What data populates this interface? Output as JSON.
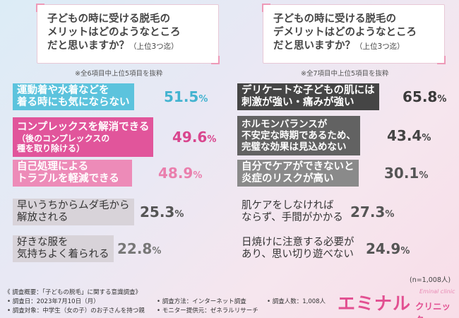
{
  "chart_data": [
    {
      "type": "bar",
      "title": "子どもの時に受ける脱毛のメリットはどのようなところだと思いますか？",
      "title_lines": [
        "子どもの時に受ける脱毛の",
        "メリットはどのようなところ",
        "だと思いますか？"
      ],
      "title_note": "（上位3つ迄）",
      "subnote": "※全6項目中上位5項目を抜粋",
      "categories": [
        "運動着や水着などを着る時にも気にならない",
        "コンプレックスを解消できる（後のコンプレックスの種を取り除ける）",
        "自己処理によるトラブルを軽減できる",
        "早いうちからムダ毛から解放される",
        "好きな服を気持ちよく着られる"
      ],
      "category_lines": [
        [
          "運動着や水着などを",
          "着る時にも気にならない"
        ],
        [
          "コンプレックスを解消できる",
          "（後のコンプレックスの",
          "種を取り除ける）"
        ],
        [
          "自己処理による",
          "トラブルを軽減できる"
        ],
        [
          "早いうちからムダ毛から",
          "解放される"
        ],
        [
          "好きな服を",
          "気持ちよく着られる"
        ]
      ],
      "values": [
        51.5,
        49.6,
        48.9,
        25.3,
        22.8
      ],
      "value_labels": [
        "51.5",
        "49.6",
        "48.9",
        "25.3",
        "22.8"
      ],
      "unit": "%"
    },
    {
      "type": "bar",
      "title": "子どもの時に受ける脱毛のデメリットはどのようなところだと思いますか？",
      "title_lines": [
        "子どもの時に受ける脱毛の",
        "デメリットはどのようなところ",
        "だと思いますか？"
      ],
      "title_note": "（上位3つ迄）",
      "subnote": "※全7項目中上位5項目を抜粋",
      "categories": [
        "デリケートな子どもの肌には刺激が強い・痛みが強い",
        "ホルモンバランスが不安定な時期であるため、完璧な効果は見込めない",
        "自分でケアができないと炎症のリスクが高い",
        "肌ケアをしなければならず、手間がかかる",
        "日焼けに注意する必要があり、思い切り遊べない"
      ],
      "category_lines": [
        [
          "デリケートな子どもの肌には",
          "刺激が強い・痛みが強い"
        ],
        [
          "ホルモンバランスが",
          "不安定な時期であるため、",
          "完璧な効果は見込めない"
        ],
        [
          "自分でケアができないと",
          "炎症のリスクが高い"
        ],
        [
          "肌ケアをしなければ",
          "ならず、手間がかかる"
        ],
        [
          "日焼けに注意する必要が",
          "あり、思い切り遊べない"
        ]
      ],
      "values": [
        65.8,
        43.4,
        30.1,
        27.3,
        24.9
      ],
      "value_labels": [
        "65.8",
        "43.4",
        "30.1",
        "27.3",
        "24.9"
      ],
      "unit": "%"
    }
  ],
  "sample_note": "(n=1,008人)",
  "footer": {
    "summary": "《 調査概要：「子どもの脱毛」に関する意識調査》",
    "date": "• 調査日：2023年7月10日（月）",
    "target": "• 調査対象：中学生（女の子）のお子さんを持つ親",
    "method": "• 調査方法：インターネット調査",
    "monitor": "• モニター提供元：ゼネラルリサーチ",
    "count": "• 調査人数：1,008人"
  },
  "brand": {
    "name": "エミナル",
    "en": "Eminal clinic",
    "sub": "クリニック"
  }
}
